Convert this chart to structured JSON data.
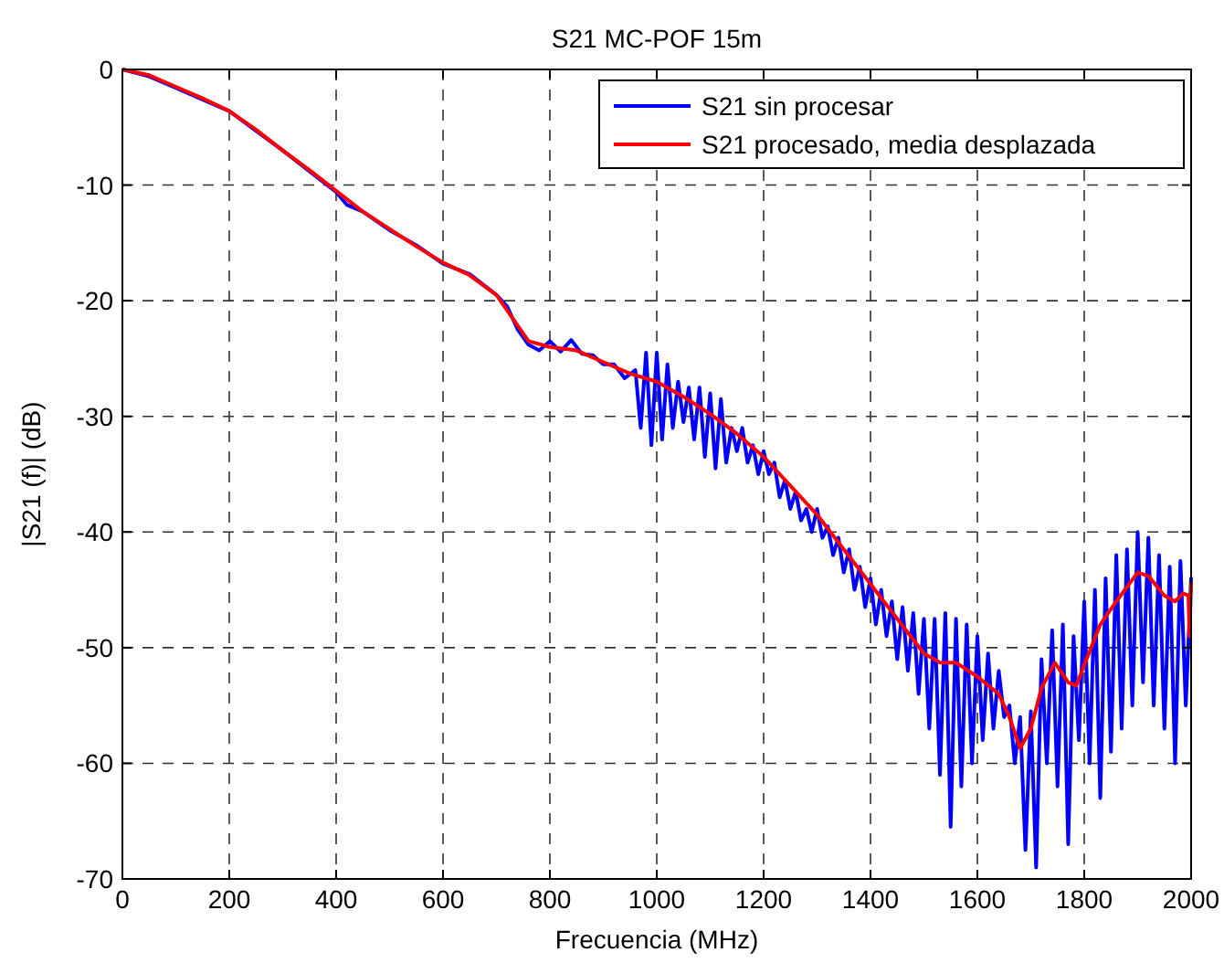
{
  "chart_data": {
    "type": "line",
    "title": "S21 MC-POF 15m",
    "xlabel": "Frecuencia (MHz)",
    "ylabel": "|S21 (f)| (dB)",
    "xlim": [
      0,
      2000
    ],
    "xticks": [
      0,
      200,
      400,
      600,
      800,
      1000,
      1200,
      1400,
      1600,
      1800,
      2000
    ],
    "ylim": [
      -70,
      0
    ],
    "yticks": [
      -70,
      -60,
      -50,
      -40,
      -30,
      -20,
      -10,
      0
    ],
    "grid": true,
    "legend": "top right",
    "line_style": "solid",
    "marker": "none",
    "series": [
      {
        "name": "S21 sin procesar",
        "color": "#0000ff",
        "x": [
          0,
          50,
          100,
          150,
          200,
          250,
          300,
          350,
          400,
          420,
          450,
          500,
          550,
          600,
          650,
          700,
          720,
          740,
          760,
          780,
          800,
          820,
          840,
          860,
          880,
          900,
          920,
          940,
          960,
          970,
          980,
          990,
          1000,
          1010,
          1020,
          1030,
          1040,
          1050,
          1060,
          1070,
          1080,
          1090,
          1100,
          1110,
          1120,
          1130,
          1140,
          1150,
          1160,
          1170,
          1180,
          1190,
          1200,
          1210,
          1220,
          1230,
          1240,
          1250,
          1260,
          1270,
          1280,
          1290,
          1300,
          1310,
          1320,
          1330,
          1340,
          1350,
          1360,
          1370,
          1380,
          1390,
          1400,
          1410,
          1420,
          1430,
          1440,
          1450,
          1460,
          1470,
          1480,
          1490,
          1500,
          1510,
          1520,
          1530,
          1540,
          1550,
          1560,
          1570,
          1580,
          1590,
          1600,
          1610,
          1620,
          1630,
          1640,
          1650,
          1660,
          1670,
          1680,
          1690,
          1700,
          1710,
          1720,
          1730,
          1740,
          1750,
          1760,
          1770,
          1780,
          1790,
          1800,
          1810,
          1820,
          1830,
          1840,
          1850,
          1860,
          1870,
          1880,
          1890,
          1900,
          1910,
          1920,
          1930,
          1940,
          1950,
          1960,
          1970,
          1980,
          1990,
          2000
        ],
        "values": [
          0,
          -0.6,
          -1.6,
          -2.6,
          -3.6,
          -5.3,
          -7,
          -8.8,
          -10.6,
          -11.7,
          -12.3,
          -13.9,
          -15.2,
          -16.8,
          -17.7,
          -19.5,
          -20.5,
          -22.5,
          -23.8,
          -24.3,
          -23.5,
          -24.4,
          -23.4,
          -24.6,
          -24.7,
          -25.5,
          -25.5,
          -26.7,
          -26,
          -31,
          -24.5,
          -32.5,
          -24.5,
          -32,
          -25.5,
          -31,
          -27,
          -30.5,
          -27.5,
          -32,
          -27.5,
          -33.5,
          -28,
          -34.5,
          -28.5,
          -34,
          -31,
          -33,
          -31,
          -34,
          -32.5,
          -35,
          -33,
          -35,
          -34,
          -37,
          -35.5,
          -38,
          -36.5,
          -39,
          -38,
          -40,
          -38,
          -40.5,
          -39.5,
          -42,
          -40.5,
          -43.5,
          -41.5,
          -45,
          -43,
          -46.5,
          -44,
          -48,
          -45,
          -49,
          -46,
          -51,
          -46.5,
          -52,
          -47,
          -54,
          -47.5,
          -57,
          -47.5,
          -61,
          -47,
          -65.5,
          -47.5,
          -62,
          -48,
          -60,
          -49,
          -58,
          -50.5,
          -57,
          -52,
          -56,
          -55,
          -60,
          -56,
          -67.5,
          -55.5,
          -69,
          -51,
          -60,
          -48.5,
          -62,
          -48,
          -67,
          -49,
          -58,
          -46,
          -60,
          -45,
          -63,
          -44,
          -59,
          -42,
          -57,
          -41.5,
          -55,
          -40,
          -53,
          -40.5,
          -55,
          -42,
          -57,
          -43,
          -60,
          -42.5,
          -55,
          -44
        ]
      },
      {
        "name": "S21 procesado, media desplazada",
        "color": "#ff0000",
        "x": [
          0,
          50,
          100,
          150,
          200,
          250,
          300,
          350,
          400,
          450,
          500,
          550,
          600,
          650,
          700,
          730,
          760,
          800,
          850,
          900,
          950,
          1000,
          1050,
          1100,
          1150,
          1200,
          1250,
          1300,
          1350,
          1400,
          1450,
          1500,
          1530,
          1560,
          1600,
          1640,
          1660,
          1680,
          1700,
          1720,
          1745,
          1770,
          1785,
          1800,
          1830,
          1860,
          1900,
          1920,
          1950,
          1970,
          1985,
          1995,
          1997,
          2000
        ],
        "values": [
          0,
          -0.5,
          -1.5,
          -2.5,
          -3.6,
          -5.2,
          -7,
          -8.7,
          -10.5,
          -12.3,
          -13.8,
          -15.3,
          -16.7,
          -17.8,
          -19.5,
          -21.5,
          -23.5,
          -24,
          -24.3,
          -25.3,
          -26.3,
          -27,
          -28.3,
          -29.8,
          -31.5,
          -33.5,
          -36,
          -38.5,
          -41.5,
          -44.5,
          -47.5,
          -50.5,
          -51.3,
          -51.3,
          -52.5,
          -54,
          -56,
          -58.7,
          -57,
          -53.5,
          -51.3,
          -53,
          -53.3,
          -51.5,
          -48,
          -46,
          -43.5,
          -43.8,
          -45.5,
          -46,
          -45.3,
          -45.5,
          -49,
          -44.5
        ]
      }
    ]
  }
}
